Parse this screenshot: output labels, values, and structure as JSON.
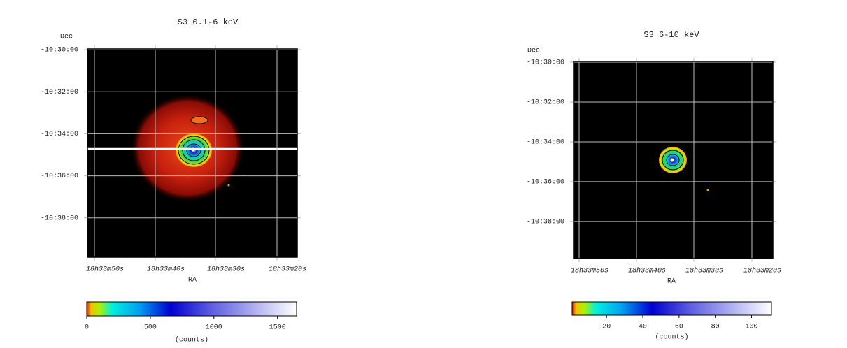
{
  "panels": [
    {
      "title": "S3 0.1-6 keV",
      "y_axis_label": "Dec",
      "x_axis_label": "RA",
      "y_tick_labels": [
        "-10:30:00",
        "-10:32:00",
        "-10:34:00",
        "-10:36:00",
        "-10:38:00"
      ],
      "x_tick_labels": [
        "18h33m50s",
        "18h33m40s",
        "18h33m30s",
        "18h33m20s"
      ],
      "colorbar": {
        "lim": [
          0,
          1650
        ],
        "ticks": [
          0,
          500,
          1000,
          1500
        ],
        "label": "(counts)"
      }
    },
    {
      "title": "S3 6-10 keV",
      "y_axis_label": "Dec",
      "x_axis_label": "RA",
      "y_tick_labels": [
        "-10:30:00",
        "-10:32:00",
        "-10:34:00",
        "-10:36:00",
        "-10:38:00"
      ],
      "x_tick_labels": [
        "18h33m50s",
        "18h33m40s",
        "18h33m30s",
        "18h33m20s"
      ],
      "colorbar": {
        "lim": [
          1,
          111
        ],
        "ticks": [
          20,
          40,
          60,
          80,
          100
        ],
        "label": "(counts)"
      }
    }
  ]
}
